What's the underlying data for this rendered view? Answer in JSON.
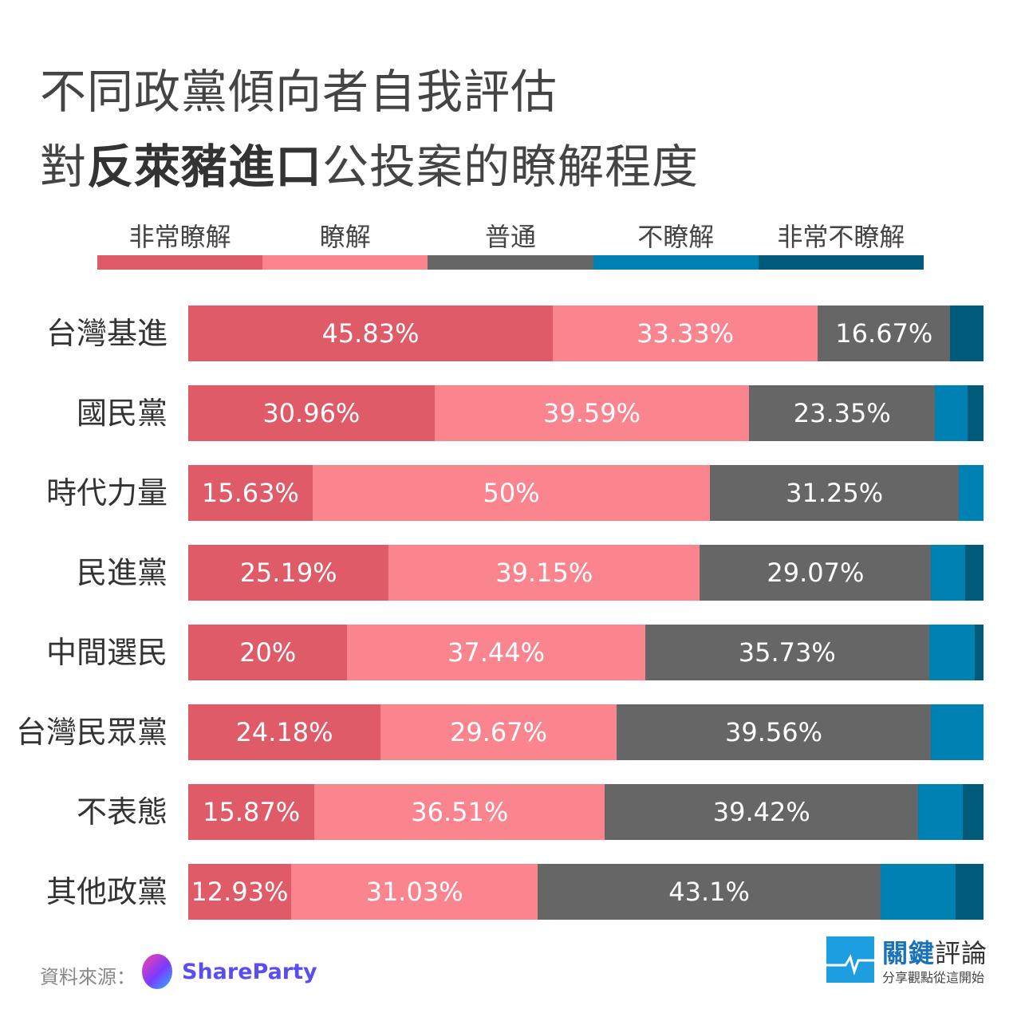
{
  "chart_data": {
    "type": "bar",
    "orientation": "horizontal",
    "stacked": true,
    "title_line1": "不同政黨傾向者自我評估",
    "title_line2_pre": "對",
    "title_line2_bold": "反萊豬進口",
    "title_line2_post": "公投案的瞭解程度",
    "legend_placement": "top",
    "categories": [
      "台灣基進",
      "國民黨",
      "時代力量",
      "民進黨",
      "中間選民",
      "台灣民眾黨",
      "不表態",
      "其他政黨"
    ],
    "series": [
      {
        "name": "非常瞭解",
        "color": "#df5b68",
        "values": [
          45.83,
          30.96,
          15.63,
          25.19,
          20,
          24.18,
          15.87,
          12.93
        ],
        "labels": [
          "45.83%",
          "30.96%",
          "15.63%",
          "25.19%",
          "20%",
          "24.18%",
          "15.87%",
          "12.93%"
        ]
      },
      {
        "name": "瞭解",
        "color": "#fb858f",
        "values": [
          33.33,
          39.59,
          50,
          39.15,
          37.44,
          29.67,
          36.51,
          31.03
        ],
        "labels": [
          "33.33%",
          "39.59%",
          "50%",
          "39.15%",
          "37.44%",
          "29.67%",
          "36.51%",
          "31.03%"
        ]
      },
      {
        "name": "普通",
        "color": "#666666",
        "values": [
          16.67,
          23.35,
          31.25,
          29.07,
          35.73,
          39.56,
          39.42,
          43.1
        ],
        "labels": [
          "16.67%",
          "23.35%",
          "31.25%",
          "29.07%",
          "35.73%",
          "39.56%",
          "39.42%",
          "43.1%"
        ]
      },
      {
        "name": "不瞭解",
        "color": "#0081b4",
        "values": [
          0,
          4.06,
          3.12,
          4.26,
          5.69,
          6.59,
          5.56,
          9.48
        ]
      },
      {
        "name": "非常不瞭解",
        "color": "#005a7a",
        "values": [
          4.17,
          2.04,
          0,
          2.33,
          1.14,
          0,
          2.64,
          3.46
        ]
      }
    ],
    "xlim": [
      0,
      100
    ]
  },
  "footer": {
    "source_label": "資料來源：",
    "source_name": "ShareParty",
    "brand_a": "關鍵",
    "brand_b": "評論",
    "slogan": "分享觀點從這開始"
  }
}
